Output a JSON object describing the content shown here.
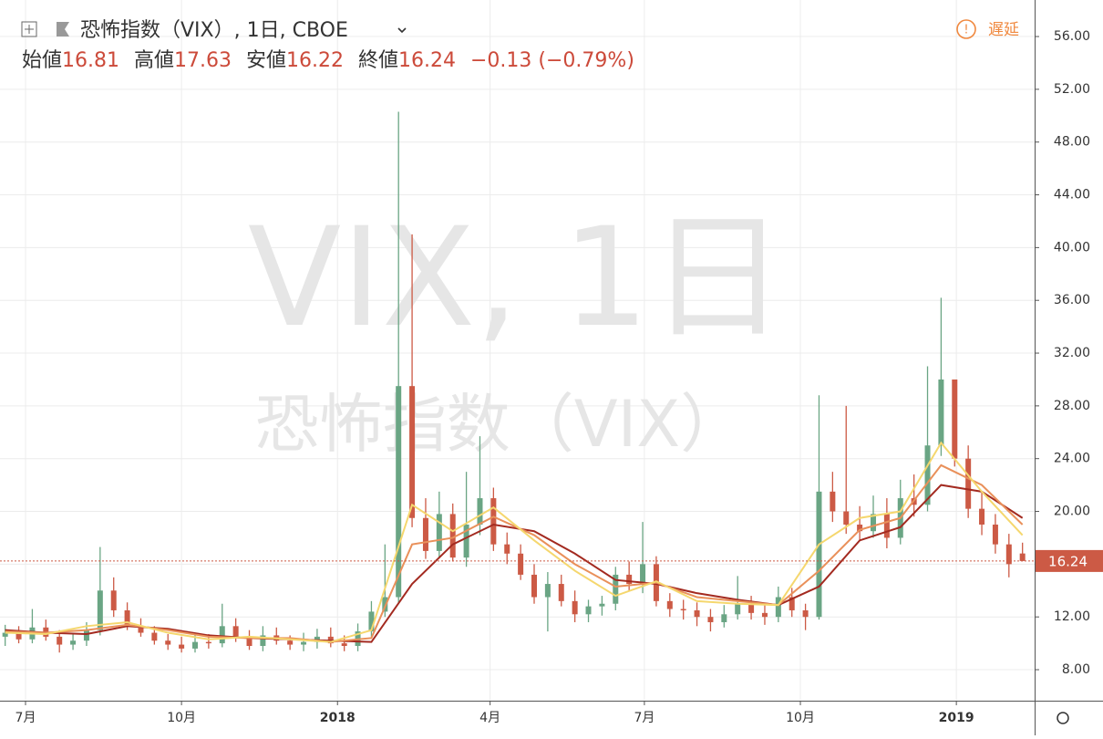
{
  "chart_data": {
    "type": "candlestick",
    "title": "恐怖指数（VIX）, 1日, CBOE",
    "delay_label": "遅延",
    "watermark": "VIX, 1日",
    "watermark_subtitle": "恐怖指数（VIX）",
    "legend": {
      "open_label": "始値",
      "open": 16.81,
      "high_label": "高値",
      "high": 17.63,
      "low_label": "安値",
      "low": 16.22,
      "close_label": "終値",
      "close": 16.24,
      "change": "−0.13 (−0.79%)"
    },
    "last_price": 16.24,
    "up_color": "#6aa584",
    "down_color": "#cc5a45",
    "xlim": [
      -15.05,
      595.16
    ],
    "ylim": [
      5.65,
      58.77
    ],
    "xticks": [
      {
        "value": 0,
        "label": "7月"
      },
      {
        "value": 92,
        "label": "10月"
      },
      {
        "value": 184,
        "label": "2018"
      },
      {
        "value": 274,
        "label": "4月"
      },
      {
        "value": 365,
        "label": "7月"
      },
      {
        "value": 457,
        "label": "10月"
      },
      {
        "value": 549,
        "label": "2019"
      }
    ],
    "yticks": [
      {
        "value": 8,
        "label": "8.00"
      },
      {
        "value": 12,
        "label": "12.00"
      },
      {
        "value": 16,
        "label": "16.00"
      },
      {
        "value": 20,
        "label": "20.00"
      },
      {
        "value": 24,
        "label": "24.00"
      },
      {
        "value": 28,
        "label": "28.00"
      },
      {
        "value": 32,
        "label": "32.00"
      },
      {
        "value": 36,
        "label": "36.00"
      },
      {
        "value": 40,
        "label": "40.00"
      },
      {
        "value": 44,
        "label": "44.00"
      },
      {
        "value": 48,
        "label": "48.00"
      },
      {
        "value": 52,
        "label": "52.00"
      },
      {
        "value": 56,
        "label": "56.00"
      }
    ],
    "grid": true,
    "candles": {
      "x": [
        -12,
        -4,
        4,
        12,
        20,
        28,
        36,
        44,
        52,
        60,
        68,
        76,
        84,
        92,
        100,
        108,
        116,
        124,
        132,
        140,
        148,
        156,
        164,
        172,
        180,
        188,
        196,
        204,
        212,
        220,
        228,
        236,
        244,
        252,
        260,
        268,
        276,
        284,
        292,
        300,
        308,
        316,
        324,
        332,
        340,
        348,
        356,
        364,
        372,
        380,
        388,
        396,
        404,
        412,
        420,
        428,
        436,
        444,
        452,
        460,
        468,
        476,
        484,
        492,
        500,
        508,
        516,
        524,
        532,
        540,
        548,
        556,
        564,
        572,
        580,
        588
      ],
      "open": [
        10.5,
        10.8,
        10.3,
        11.2,
        10.5,
        9.9,
        10.2,
        11.0,
        14.0,
        12.5,
        11.3,
        10.8,
        10.2,
        9.9,
        9.6,
        10.1,
        10.0,
        11.3,
        10.4,
        9.8,
        10.6,
        10.2,
        9.9,
        10.1,
        10.5,
        10.0,
        9.8,
        10.9,
        12.4,
        13.5,
        29.5,
        19.5,
        17.0,
        19.8,
        16.5,
        19.0,
        21.0,
        17.5,
        16.8,
        15.2,
        13.5,
        14.5,
        13.2,
        12.2,
        12.8,
        13.0,
        15.2,
        14.5,
        16.0,
        13.2,
        12.6,
        12.5,
        12.0,
        11.6,
        12.2,
        13.0,
        12.3,
        12.0,
        13.5,
        12.5,
        12.0,
        21.5,
        20.0,
        19.0,
        18.5,
        19.8,
        18.0,
        21.0,
        20.5,
        25.0,
        30.0,
        24.0,
        20.2,
        19.0,
        17.5,
        16.81
      ],
      "high": [
        11.4,
        11.3,
        12.6,
        11.8,
        11.0,
        10.8,
        11.6,
        17.3,
        15.0,
        13.1,
        11.9,
        11.3,
        10.7,
        10.5,
        10.8,
        10.7,
        13.0,
        11.9,
        11.0,
        11.3,
        11.2,
        10.6,
        10.8,
        11.1,
        11.2,
        10.6,
        11.5,
        13.2,
        17.5,
        50.3,
        41.0,
        21.0,
        21.5,
        20.6,
        23.0,
        25.7,
        21.8,
        18.4,
        17.5,
        16.0,
        15.4,
        15.2,
        14.0,
        13.3,
        13.6,
        15.8,
        16.2,
        19.2,
        16.6,
        13.8,
        13.3,
        13.1,
        12.6,
        12.9,
        15.1,
        13.6,
        13.0,
        14.3,
        14.2,
        13.0,
        28.8,
        23.0,
        28.0,
        20.4,
        21.2,
        21.0,
        22.4,
        22.8,
        31.0,
        36.2,
        28.5,
        25.0,
        21.5,
        19.8,
        18.3,
        17.63
      ],
      "low": [
        9.8,
        10.0,
        10.0,
        10.2,
        9.3,
        9.5,
        9.8,
        10.6,
        12.0,
        11.0,
        10.5,
        9.9,
        9.5,
        9.3,
        9.3,
        9.6,
        9.7,
        10.1,
        9.5,
        9.4,
        9.9,
        9.5,
        9.4,
        9.6,
        9.7,
        9.4,
        9.4,
        10.5,
        12.0,
        13.0,
        18.8,
        16.4,
        16.5,
        16.2,
        15.8,
        18.2,
        17.0,
        16.0,
        14.8,
        13.0,
        10.9,
        12.8,
        11.6,
        11.6,
        12.1,
        12.5,
        14.0,
        13.8,
        12.8,
        12.0,
        11.8,
        11.3,
        10.9,
        11.2,
        11.8,
        11.8,
        11.4,
        11.6,
        12.0,
        11.0,
        11.8,
        19.2,
        18.3,
        17.8,
        18.0,
        17.2,
        17.5,
        19.6,
        20.0,
        24.2,
        23.4,
        19.5,
        18.2,
        16.8,
        15.0,
        16.22
      ],
      "close": [
        10.8,
        10.3,
        11.2,
        10.5,
        9.9,
        10.2,
        11.0,
        14.0,
        12.5,
        11.3,
        10.8,
        10.2,
        9.9,
        9.6,
        10.1,
        10.0,
        11.3,
        10.4,
        9.8,
        10.6,
        10.2,
        9.9,
        10.1,
        10.5,
        10.0,
        9.8,
        10.9,
        12.4,
        13.5,
        29.5,
        19.5,
        17.0,
        19.8,
        16.5,
        19.0,
        21.0,
        17.5,
        16.8,
        15.2,
        13.5,
        14.5,
        13.2,
        12.2,
        12.8,
        13.0,
        15.2,
        14.5,
        16.0,
        13.2,
        12.6,
        12.5,
        12.0,
        11.6,
        12.2,
        13.0,
        12.3,
        12.0,
        13.5,
        12.5,
        12.0,
        21.5,
        20.0,
        19.0,
        18.5,
        19.8,
        18.0,
        21.0,
        20.5,
        25.0,
        30.0,
        24.0,
        20.2,
        19.0,
        17.5,
        16.0,
        16.24
      ]
    },
    "ma_x": [
      -12,
      12,
      36,
      60,
      84,
      108,
      132,
      156,
      180,
      204,
      228,
      252,
      276,
      300,
      324,
      348,
      372,
      396,
      420,
      444,
      468,
      492,
      516,
      540,
      564,
      588
    ],
    "series": [
      {
        "color": "#a32a20",
        "values": [
          11.0,
          10.8,
          10.7,
          11.3,
          11.1,
          10.6,
          10.4,
          10.3,
          10.2,
          10.1,
          14.5,
          17.5,
          19.0,
          18.5,
          16.8,
          14.8,
          14.5,
          13.8,
          13.3,
          12.9,
          14.3,
          17.8,
          18.8,
          22.0,
          21.5,
          19.5
        ]
      },
      {
        "color": "#e9905a",
        "values": [
          10.9,
          10.8,
          11.0,
          11.4,
          11.0,
          10.5,
          10.4,
          10.4,
          10.1,
          10.4,
          17.5,
          18.0,
          19.6,
          18.2,
          16.0,
          14.3,
          14.6,
          13.5,
          13.2,
          12.9,
          15.5,
          18.6,
          19.5,
          23.5,
          22.0,
          19.0
        ]
      },
      {
        "color": "#f5d76e",
        "values": [
          10.8,
          10.7,
          11.3,
          11.6,
          10.8,
          10.3,
          10.5,
          10.3,
          10.1,
          11.0,
          20.5,
          18.5,
          20.3,
          17.8,
          15.5,
          13.6,
          14.7,
          13.2,
          13.0,
          12.9,
          17.5,
          19.5,
          20.0,
          25.2,
          21.5,
          18.2
        ]
      }
    ]
  }
}
